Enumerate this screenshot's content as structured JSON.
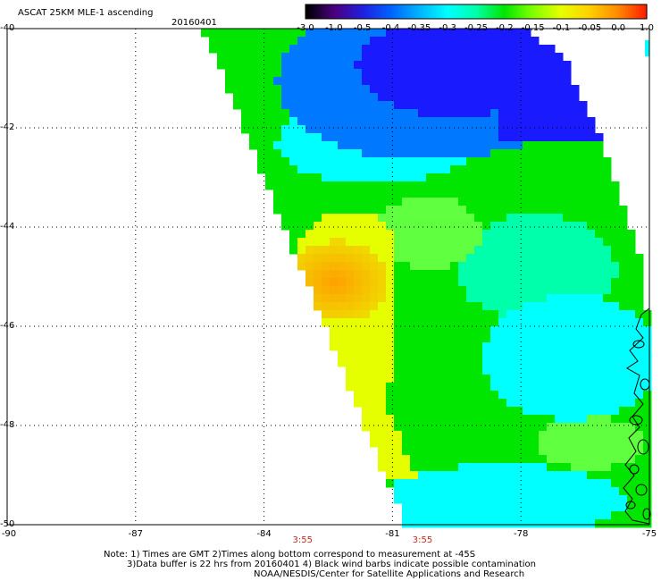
{
  "header": {
    "title": "ASCAT 25KM MLE-1 ascending",
    "date": "20160401"
  },
  "colorbar": {
    "labels": [
      "-3.0",
      "-1.0",
      "-0.5",
      "-0.4",
      "-0.35",
      "-0.3",
      "-0.25",
      "-0.2",
      "-0.15",
      "-0.1",
      "-0.05",
      "0.0",
      "1.0"
    ],
    "colors": [
      "#000000",
      "#4b0082",
      "#2020e0",
      "#0064ff",
      "#00b4ff",
      "#00ffff",
      "#00ffaa",
      "#00e600",
      "#80ff00",
      "#e6ff00",
      "#ffd200",
      "#ff8c00",
      "#ff2000"
    ]
  },
  "axes": {
    "lat_labels": [
      "-40",
      "-42",
      "-44",
      "-46",
      "-48",
      "-50"
    ],
    "lon_labels": [
      "-90",
      "-87",
      "-84",
      "-81",
      "-78",
      "-75"
    ],
    "lat_range": [
      -50,
      -40
    ],
    "lon_range": [
      -90,
      -75
    ]
  },
  "overpass_times": [
    {
      "label": "3:55",
      "lon": -83.1
    },
    {
      "label": "3:55",
      "lon": -80.3
    }
  ],
  "note": {
    "line1": "Note: 1) Times are GMT 2)Times along bottom correspond to measurement at -45S",
    "line2": "3)Data buffer is 22 hrs from 20160401 4) Black wind barbs indicate possible contamination",
    "line3": "NOAA/NESDIS/Center for Satellite Applications and Research"
  },
  "legend_colors": {
    "dark_blue": "#1a1aff",
    "blue": "#0078ff",
    "cyan": "#00ffff",
    "aqua_green": "#00ffaa",
    "green": "#00e600",
    "light_green": "#60ff40",
    "yellow": "#e6ff00",
    "orange": "#ffa000"
  }
}
